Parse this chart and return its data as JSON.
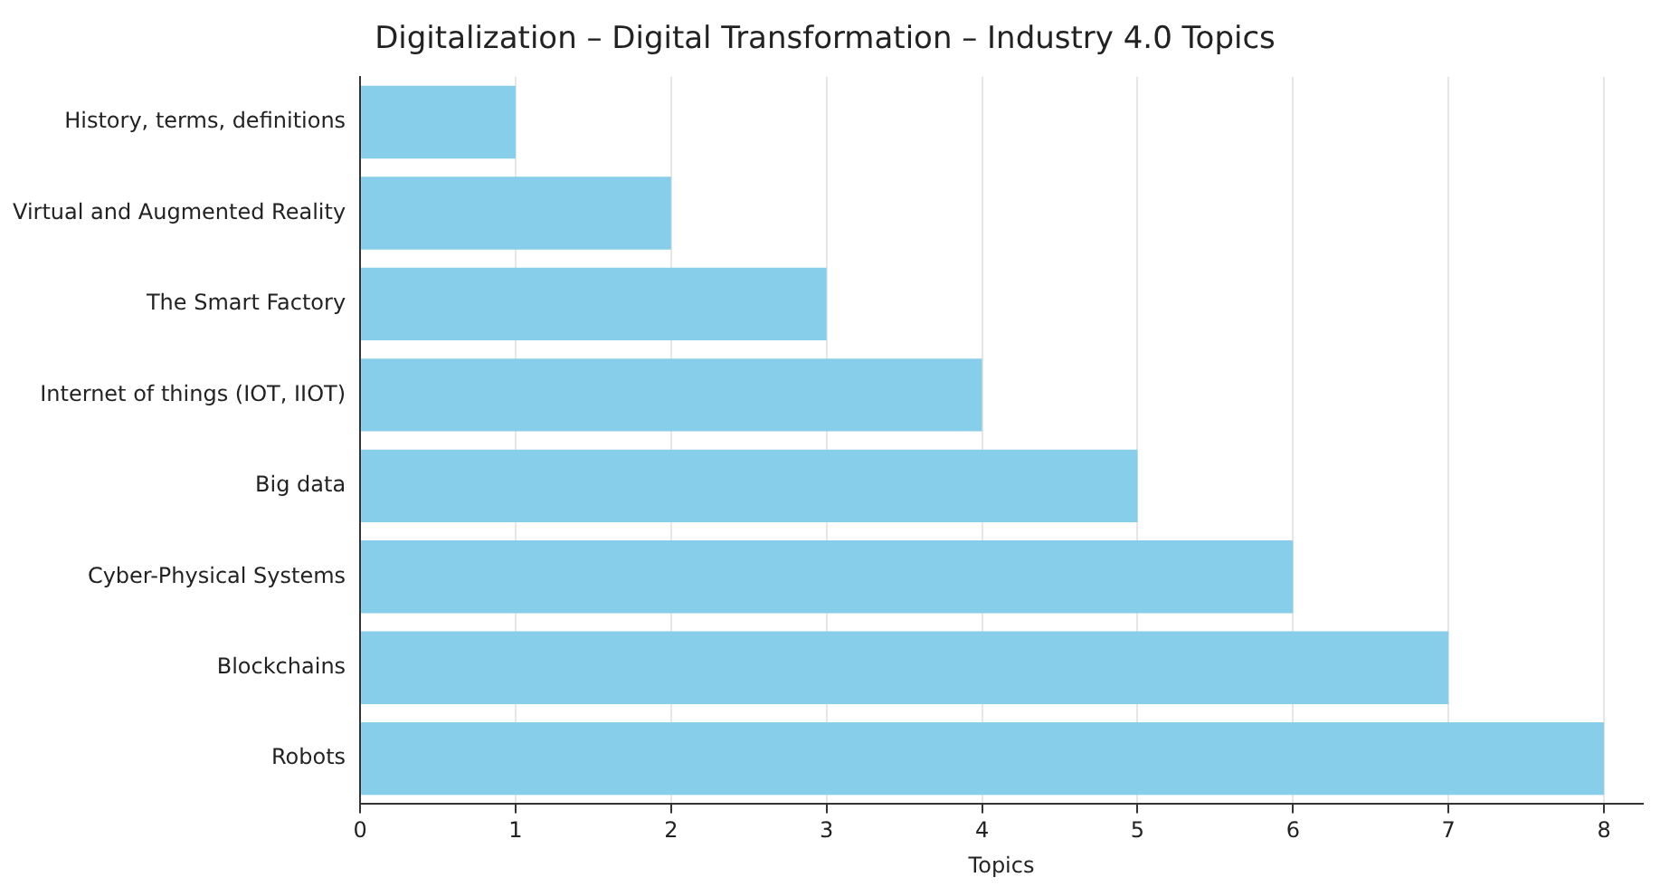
{
  "chart_data": {
    "type": "bar",
    "orientation": "horizontal",
    "title": "Digitalization – Digital Transformation – Industry 4.0 Topics",
    "xlabel": "Topics",
    "categories": [
      "History, terms, definitions",
      "Virtual and Augmented Reality",
      "The Smart Factory",
      "Internet of things (IOT, IIOT)",
      "Big data",
      "Cyber-Physical Systems",
      "Blockchains",
      "Robots"
    ],
    "values": [
      1,
      2,
      3,
      4,
      5,
      6,
      7,
      8
    ],
    "color": "#87ceeb",
    "xlim": [
      0,
      8.25
    ],
    "xticks": [
      0,
      1,
      2,
      3,
      4,
      5,
      6,
      7,
      8
    ],
    "grid": "x"
  }
}
